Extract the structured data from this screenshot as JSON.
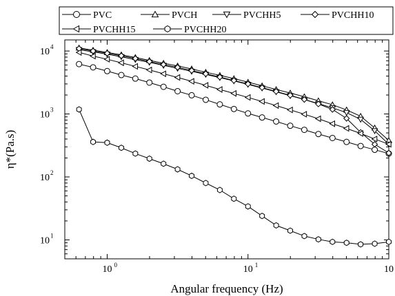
{
  "chart_data": {
    "type": "line",
    "xlabel": "Angular frequency (Hz)",
    "ylabel": "η*(Pa.s)",
    "xscale": "log",
    "yscale": "log",
    "xlim": [
      0.5,
      100
    ],
    "ylim": [
      5,
      15000
    ],
    "grid": false,
    "legend_position": "top",
    "x_ticks": [
      1,
      10,
      100
    ],
    "x_tick_labels": [
      "10",
      "10",
      "10"
    ],
    "x_tick_exponents": [
      "0",
      "1",
      "2"
    ],
    "y_ticks": [
      10,
      100,
      1000,
      10000
    ],
    "y_tick_labels": [
      "10",
      "10",
      "10",
      "10"
    ],
    "y_tick_exponents": [
      "1",
      "2",
      "3",
      "4"
    ],
    "x": [
      0.631,
      0.794,
      1.0,
      1.26,
      1.585,
      1.995,
      2.512,
      3.162,
      3.981,
      5.012,
      6.31,
      7.943,
      10.0,
      12.59,
      15.85,
      19.95,
      25.12,
      31.62,
      39.81,
      50.12,
      63.1,
      79.43,
      100.0
    ],
    "series": [
      {
        "name": "PVC",
        "marker": "circle",
        "values": [
          6200,
          5500,
          4800,
          4150,
          3650,
          3150,
          2700,
          2300,
          1980,
          1680,
          1420,
          1200,
          1020,
          880,
          760,
          650,
          560,
          480,
          415,
          360,
          310,
          270,
          235
        ]
      },
      {
        "name": "PVCH",
        "marker": "triangle-up",
        "values": [
          11200,
          10300,
          9500,
          8700,
          7900,
          7100,
          6400,
          5800,
          5200,
          4600,
          4100,
          3650,
          3200,
          2800,
          2450,
          2150,
          1880,
          1620,
          1400,
          1160,
          920,
          600,
          380
        ]
      },
      {
        "name": "PVCHH5",
        "marker": "triangle-down",
        "values": [
          10500,
          9700,
          8900,
          8100,
          7300,
          6600,
          5900,
          5300,
          4750,
          4250,
          3780,
          3350,
          2950,
          2580,
          2250,
          1950,
          1700,
          1460,
          1250,
          1050,
          820,
          540,
          330
        ]
      },
      {
        "name": "PVCHH10",
        "marker": "diamond",
        "values": [
          10900,
          10000,
          9200,
          8400,
          7600,
          6800,
          6100,
          5500,
          4900,
          4350,
          3850,
          3400,
          3000,
          2620,
          2280,
          1980,
          1700,
          1440,
          1180,
          850,
          510,
          330,
          240
        ]
      },
      {
        "name": "PVCHH15",
        "marker": "triangle-left",
        "values": [
          9500,
          8300,
          7400,
          6500,
          5700,
          5000,
          4350,
          3800,
          3300,
          2850,
          2450,
          2120,
          1830,
          1580,
          1360,
          1160,
          990,
          840,
          700,
          590,
          490,
          400,
          330
        ]
      },
      {
        "name": "PVCHH20",
        "marker": "hexagon",
        "values": [
          1180,
          360,
          350,
          290,
          235,
          195,
          162,
          132,
          104,
          80,
          62,
          45,
          34,
          24,
          17,
          14,
          11.5,
          10.2,
          9.3,
          9.0,
          8.5,
          8.7,
          9.3
        ]
      }
    ]
  }
}
